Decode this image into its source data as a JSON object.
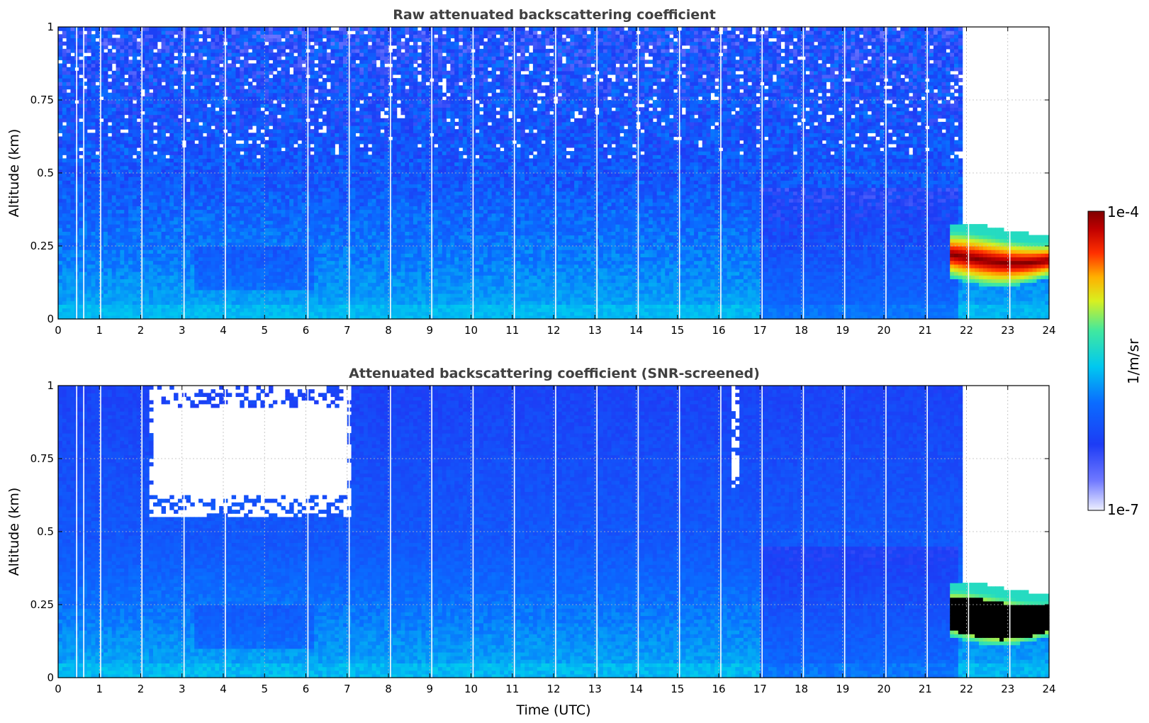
{
  "chart_data": [
    {
      "type": "heatmap",
      "title": "Raw attenuated backscattering coefficient",
      "xlabel": "",
      "ylabel": "Altitude (km)",
      "xlim": [
        0,
        24
      ],
      "ylim": [
        0,
        1
      ],
      "xticks": [
        "0",
        "1",
        "2",
        "3",
        "4",
        "5",
        "6",
        "7",
        "8",
        "9",
        "10",
        "11",
        "12",
        "13",
        "14",
        "15",
        "16",
        "17",
        "18",
        "19",
        "20",
        "21",
        "22",
        "23",
        "24"
      ],
      "yticks": [
        "0",
        "0.25",
        "0.5",
        "0.75",
        "1"
      ],
      "grid": true,
      "screened": false,
      "data_gaps_hours": [
        0.45,
        0.62,
        1.03,
        2.03,
        3.05,
        4.05,
        6.05,
        7.05,
        8.05,
        9.05,
        10.05,
        11.05,
        12.05,
        13.05,
        14.05,
        15.05,
        16.05,
        17.05,
        18.05,
        19.05,
        20.05,
        21.05,
        22.05,
        23.05
      ],
      "features": [
        {
          "name": "boundary layer",
          "x": [
            0,
            17
          ],
          "y": [
            0,
            0.5
          ],
          "level": 0.45
        },
        {
          "name": "aerosol plume",
          "x": [
            3.3,
            6.2
          ],
          "y": [
            0.1,
            0.25
          ],
          "level": 0.28
        },
        {
          "name": "low cloud",
          "x": [
            21.7,
            23.9
          ],
          "y": [
            0.1,
            0.3
          ],
          "level": 1.0
        },
        {
          "name": "no signal above cloud",
          "x": [
            21.9,
            24
          ],
          "y": [
            0.3,
            1
          ],
          "level": null
        }
      ]
    },
    {
      "type": "heatmap",
      "title": "Attenuated backscattering coefficient (SNR-screened)",
      "xlabel": "Time (UTC)",
      "ylabel": "Altitude (km)",
      "xlim": [
        0,
        24
      ],
      "ylim": [
        0,
        1
      ],
      "xticks": [
        "0",
        "1",
        "2",
        "3",
        "4",
        "5",
        "6",
        "7",
        "8",
        "9",
        "10",
        "11",
        "12",
        "13",
        "14",
        "15",
        "16",
        "17",
        "18",
        "19",
        "20",
        "21",
        "22",
        "23",
        "24"
      ],
      "yticks": [
        "0",
        "0.25",
        "0.5",
        "0.75",
        "1"
      ],
      "grid": true,
      "screened": true,
      "data_gaps_hours": [
        0.45,
        0.62,
        1.03,
        2.03,
        3.05,
        4.05,
        6.05,
        7.05,
        8.05,
        9.05,
        10.05,
        11.05,
        12.05,
        13.05,
        14.05,
        15.05,
        16.05,
        17.05,
        18.05,
        19.05,
        20.05,
        21.05,
        22.05,
        23.05
      ],
      "features": [
        {
          "name": "boundary layer",
          "x": [
            0,
            17
          ],
          "y": [
            0,
            0.5
          ],
          "level": 0.45
        },
        {
          "name": "screened-out region",
          "x": [
            2.2,
            7.1
          ],
          "y": [
            0.55,
            1
          ],
          "level": null
        },
        {
          "name": "screened-out column",
          "x": [
            16.3,
            16.5
          ],
          "y": [
            0.65,
            1
          ],
          "level": null
        },
        {
          "name": "low cloud (saturated)",
          "x": [
            21.7,
            23.9
          ],
          "y": [
            0.12,
            0.28
          ],
          "level": 1.1
        },
        {
          "name": "no signal above cloud",
          "x": [
            21.9,
            24
          ],
          "y": [
            0.3,
            1
          ],
          "level": null
        }
      ]
    }
  ],
  "colorbar": {
    "max_label": "1e-4",
    "min_label": "1e-7",
    "unit_label": "1/m/sr",
    "colormap": "jet",
    "saturated_color": "#000000"
  }
}
